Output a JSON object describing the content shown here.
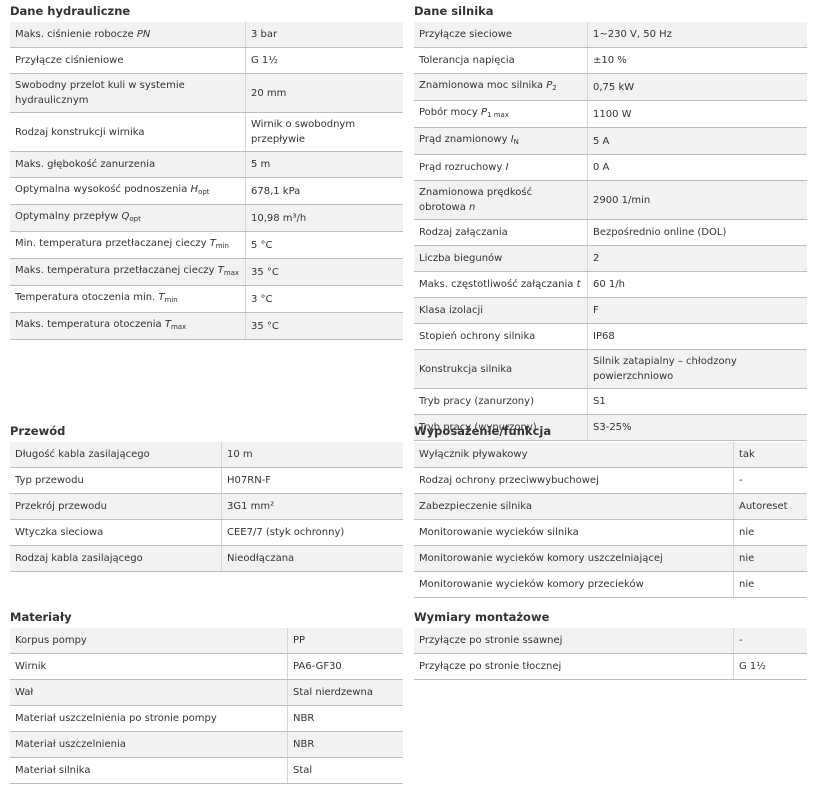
{
  "sections": [
    {
      "title": "Dane hydrauliczne",
      "rows": [
        [
          [
            "Maks. ciśnienie robocze ",
            {
              "italic": "PN"
            }
          ],
          "3 bar"
        ],
        [
          "Przyłącze ciśnieniowe",
          "G 1½"
        ],
        [
          "Swobodny przelot kuli w systemie hydraulicznym",
          "20 mm"
        ],
        [
          "Rodzaj konstrukcji wirnika",
          "Wirnik o swobodnym przepływie"
        ],
        [
          "Maks. głębokość zanurzenia",
          "5 m"
        ],
        [
          [
            "Optymalna wysokość podnoszenia ",
            {
              "italic": "H"
            },
            {
              "sub": "opt"
            }
          ],
          "678,1 kPa"
        ],
        [
          [
            "Optymalny przepływ ",
            {
              "italic": "Q"
            },
            {
              "sub": "opt"
            }
          ],
          "10,98 m³/h"
        ],
        [
          [
            "Min. temperatura przetłaczanej cieczy ",
            {
              "italic": "T"
            },
            {
              "sub": "min"
            }
          ],
          "5 °C"
        ],
        [
          [
            "Maks. temperatura przetłaczanej cieczy ",
            {
              "italic": "T"
            },
            {
              "sub": "max"
            }
          ],
          "35 °C"
        ],
        [
          [
            "Temperatura otoczenia min. ",
            {
              "italic": "T"
            },
            {
              "sub": "min"
            }
          ],
          "3 °C"
        ],
        [
          [
            "Maks. temperatura otoczenia ",
            {
              "italic": "T"
            },
            {
              "sub": "max"
            }
          ],
          "35 °C"
        ]
      ]
    },
    {
      "title": "Dane silnika",
      "rows": [
        [
          "Przyłącze sieciowe",
          "1~230 V, 50 Hz"
        ],
        [
          "Tolerancja napięcia",
          "±10 %"
        ],
        [
          [
            "Znamionowa moc silnika ",
            {
              "italic": "P"
            },
            {
              "sub": "2"
            }
          ],
          "0,75 kW"
        ],
        [
          [
            "Pobór mocy ",
            {
              "italic": "P"
            },
            {
              "sub": "1 max"
            }
          ],
          "1100 W"
        ],
        [
          [
            "Prąd znamionowy ",
            {
              "italic": "I"
            },
            {
              "sub": "N"
            }
          ],
          "5 A"
        ],
        [
          [
            "Prąd rozruchowy ",
            {
              "italic": "I"
            }
          ],
          "0 A"
        ],
        [
          [
            "Znamionowa prędkość obrotowa ",
            {
              "italic": "n"
            }
          ],
          "2900 1/min"
        ],
        [
          "Rodzaj załączania",
          "Bezpośrednio online (DOL)"
        ],
        [
          "Liczba biegunów",
          "2"
        ],
        [
          [
            "Maks. częstotliwość załączania ",
            {
              "italic": "t"
            }
          ],
          "60 1/h"
        ],
        [
          "Klasa izolacji",
          "F"
        ],
        [
          "Stopień ochrony silnika",
          "IP68"
        ],
        [
          "Konstrukcja silnika",
          "Silnik zatapialny – chłodzony powierzchniowo"
        ],
        [
          "Tryb pracy (zanurzony)",
          "S1"
        ],
        [
          "Tryb pracy (wynurzony)",
          "S3-25%"
        ]
      ]
    },
    {
      "title": "Przewód",
      "rows": [
        [
          "Długość kabla zasilającego",
          "10 m"
        ],
        [
          "Typ przewodu",
          "H07RN-F"
        ],
        [
          "Przekrój przewodu",
          "3G1 mm²"
        ],
        [
          "Wtyczka sieciowa",
          "CEE7/7 (styk ochronny)"
        ],
        [
          "Rodzaj kabla zasilającego",
          "Nieodłączana"
        ]
      ]
    },
    {
      "title": "Wyposażenie/funkcja",
      "rows": [
        [
          "Wyłącznik pływakowy",
          "tak"
        ],
        [
          "Rodzaj ochrony przeciwwybuchowej",
          "-"
        ],
        [
          "Zabezpieczenie silnika",
          "Autoreset"
        ],
        [
          "Monitorowanie wycieków silnika",
          "nie"
        ],
        [
          "Monitorowanie wycieków komory uszczelniającej",
          "nie"
        ],
        [
          "Monitorowanie wycieków komory przecieków",
          "nie"
        ]
      ]
    },
    {
      "title": "Materiały",
      "rows": [
        [
          "Korpus pompy",
          "PP"
        ],
        [
          "Wirnik",
          "PA6-GF30"
        ],
        [
          "Wał",
          "Stal nierdzewna"
        ],
        [
          "Materiał uszczelnienia po stronie pompy",
          "NBR"
        ],
        [
          "Materiał uszczelnienia",
          "NBR"
        ],
        [
          "Materiał silnika",
          "Stal"
        ]
      ]
    },
    {
      "title": "Wymiary montażowe",
      "rows": [
        [
          "Przyłącze po stronie ssawnej",
          "-"
        ],
        [
          "Przyłącze po stronie tłocznej",
          "G 1½"
        ]
      ]
    }
  ]
}
